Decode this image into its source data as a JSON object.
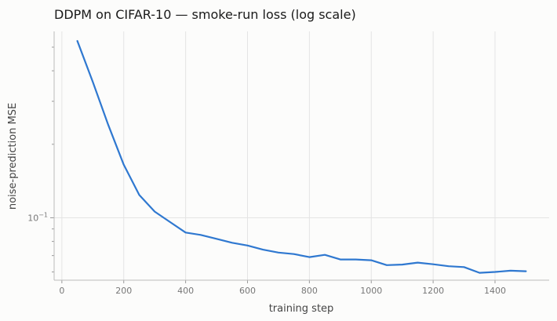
{
  "chart_data": {
    "type": "line",
    "title": "DDPM on CIFAR-10 — smoke-run loss (log scale)",
    "xlabel": "training step",
    "ylabel": "noise-prediction MSE",
    "xlim": [
      -25,
      1575
    ],
    "ylim": [
      0.0555,
      0.58
    ],
    "yscale": "log",
    "grid": true,
    "xticks": [
      0,
      200,
      400,
      600,
      800,
      1000,
      1200,
      1400
    ],
    "xtick_labels": [
      "0",
      "200",
      "400",
      "600",
      "800",
      "1000",
      "1200",
      "1400"
    ],
    "yticks_major": [
      0.1
    ],
    "ytick_major_labels": [
      "10",
      "−1"
    ],
    "series": [
      {
        "color": "#2f78d0",
        "x": [
          50,
          100,
          150,
          200,
          250,
          300,
          350,
          400,
          450,
          500,
          550,
          600,
          650,
          700,
          750,
          800,
          850,
          900,
          950,
          1000,
          1050,
          1100,
          1150,
          1200,
          1250,
          1300,
          1350,
          1400,
          1450,
          1500
        ],
        "y": [
          0.53,
          0.36,
          0.24,
          0.165,
          0.124,
          0.106,
          0.096,
          0.087,
          0.085,
          0.082,
          0.079,
          0.077,
          0.074,
          0.072,
          0.071,
          0.069,
          0.0705,
          0.0675,
          0.0675,
          0.067,
          0.064,
          0.0643,
          0.0655,
          0.0645,
          0.0633,
          0.0628,
          0.0595,
          0.06,
          0.0607,
          0.0604
        ]
      }
    ]
  }
}
